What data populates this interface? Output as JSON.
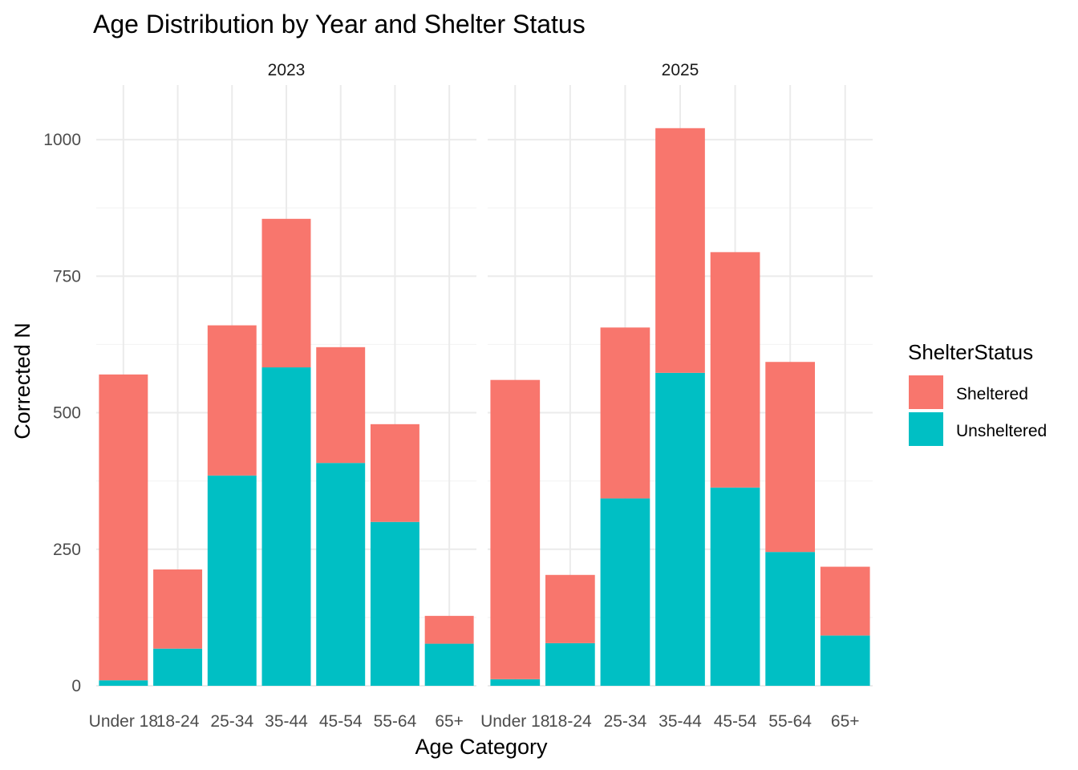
{
  "chart_data": {
    "type": "bar",
    "stacked": true,
    "title": "Age Distribution by Year and Shelter Status",
    "xlabel": "Age Category",
    "ylabel": "Corrected N",
    "ylim": [
      0,
      1100
    ],
    "yticks": [
      0,
      250,
      500,
      750,
      1000
    ],
    "grid": true,
    "legend": {
      "title": "ShelterStatus",
      "position": "right",
      "entries": [
        {
          "label": "Sheltered",
          "color": "#F8766D"
        },
        {
          "label": "Unsheltered",
          "color": "#00BFC4"
        }
      ]
    },
    "categories": [
      "Under 18",
      "18-24",
      "25-34",
      "35-44",
      "45-54",
      "55-64",
      "65+"
    ],
    "panels": [
      {
        "facet": "2023",
        "series": [
          {
            "name": "Unsheltered",
            "color": "#00BFC4",
            "values": [
              10,
              68,
              385,
              583,
              408,
              300,
              77
            ]
          },
          {
            "name": "Sheltered",
            "color": "#F8766D",
            "values": [
              560,
              145,
              275,
              272,
              212,
              179,
              51
            ]
          }
        ]
      },
      {
        "facet": "2025",
        "series": [
          {
            "name": "Unsheltered",
            "color": "#00BFC4",
            "values": [
              12,
              78,
              343,
              573,
              363,
              245,
              92
            ]
          },
          {
            "name": "Sheltered",
            "color": "#F8766D",
            "values": [
              548,
              125,
              313,
              448,
              431,
              348,
              126
            ]
          }
        ]
      }
    ]
  }
}
